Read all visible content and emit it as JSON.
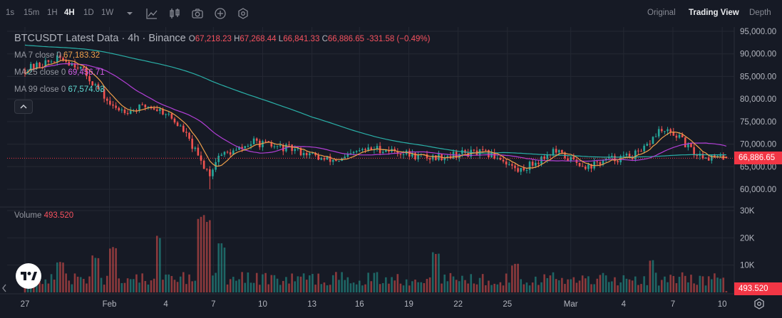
{
  "toolbar": {
    "timeframes": [
      "1s",
      "15m",
      "1H",
      "4H",
      "1D",
      "1W"
    ],
    "active_timeframe": "4H",
    "tools": [
      "chevron-down-icon",
      "indicators-icon",
      "chart-type-icon",
      "screenshot-icon",
      "add-icon",
      "settings-hex-icon"
    ],
    "views": [
      "Original",
      "Trading View",
      "Depth"
    ],
    "active_view": "Trading View"
  },
  "legend": {
    "symbol": "BTCUSDT Latest Data",
    "interval": "4h",
    "exchange": "Binance",
    "o_label": "O",
    "o": "67,218.23",
    "h_label": "H",
    "h": "67,268.44",
    "l_label": "L",
    "l": "66,841.33",
    "c_label": "C",
    "c": "66,886.65",
    "change": "-331.58 (−0.49%)",
    "ma7_label": "MA 7 close 0",
    "ma7": "67,183.32",
    "ma25_label": "MA 25 close 0",
    "ma25": "69,456.71",
    "ma99_label": "MA 99 close 0",
    "ma99": "67,574.03",
    "volume_label": "Volume",
    "volume": "493.520"
  },
  "colors": {
    "up": "#26a69a",
    "down": "#ef5350",
    "ma7": "#f0a04b",
    "ma25": "#b23fd6",
    "ma99": "#2ab0a8",
    "price_tag": "#f23645"
  },
  "price_axis": [
    "95,000.00",
    "90,000.00",
    "85,000.00",
    "80,000.00",
    "75,000.00",
    "70,000.00",
    "65,000.00",
    "60,000.00"
  ],
  "volume_axis": [
    "30K",
    "20K",
    "10K"
  ],
  "current_price": "66,886.65",
  "current_volume": "493.520",
  "time_axis": [
    "27",
    "Feb",
    "4",
    "7",
    "10",
    "13",
    "16",
    "19",
    "22",
    "25",
    "Mar",
    "4",
    "7",
    "10"
  ],
  "chart_data": {
    "type": "candlestick",
    "symbol": "BTCUSDT",
    "interval": "4h",
    "y_range": [
      55000,
      96000
    ],
    "volume_range": [
      0,
      32000
    ],
    "anchors_close": [
      {
        "d": 0,
        "p": 86500
      },
      {
        "d": 2,
        "p": 89000
      },
      {
        "d": 3,
        "p": 87500
      },
      {
        "d": 4,
        "p": 83000
      },
      {
        "d": 5,
        "p": 78000
      },
      {
        "d": 6,
        "p": 77500
      },
      {
        "d": 7,
        "p": 78500
      },
      {
        "d": 8,
        "p": 77000
      },
      {
        "d": 9,
        "p": 73000
      },
      {
        "d": 10,
        "p": 66000
      },
      {
        "d": 10.5,
        "p": 63500
      },
      {
        "d": 11,
        "p": 67500
      },
      {
        "d": 12,
        "p": 68500
      },
      {
        "d": 13,
        "p": 70500
      },
      {
        "d": 14,
        "p": 69500
      },
      {
        "d": 15,
        "p": 69000
      },
      {
        "d": 16,
        "p": 68000
      },
      {
        "d": 17,
        "p": 66500
      },
      {
        "d": 18,
        "p": 66500
      },
      {
        "d": 19,
        "p": 68500
      },
      {
        "d": 20,
        "p": 69000
      },
      {
        "d": 21,
        "p": 68500
      },
      {
        "d": 22,
        "p": 67500
      },
      {
        "d": 23,
        "p": 67000
      },
      {
        "d": 24,
        "p": 67500
      },
      {
        "d": 25,
        "p": 68000
      },
      {
        "d": 26,
        "p": 68000
      },
      {
        "d": 27,
        "p": 67000
      },
      {
        "d": 28,
        "p": 64000
      },
      {
        "d": 29,
        "p": 66000
      },
      {
        "d": 30,
        "p": 68500
      },
      {
        "d": 31,
        "p": 66500
      },
      {
        "d": 32,
        "p": 65000
      },
      {
        "d": 33,
        "p": 66500
      },
      {
        "d": 34,
        "p": 67000
      },
      {
        "d": 35,
        "p": 68000
      },
      {
        "d": 36,
        "p": 73000
      },
      {
        "d": 37,
        "p": 72000
      },
      {
        "d": 38,
        "p": 68000
      },
      {
        "d": 39,
        "p": 67000
      },
      {
        "d": 40,
        "p": 66900
      }
    ],
    "volume_spikes": [
      {
        "d": 2,
        "v": 12000
      },
      {
        "d": 4,
        "v": 14000
      },
      {
        "d": 5,
        "v": 18000
      },
      {
        "d": 7.6,
        "v": 21000
      },
      {
        "d": 10,
        "v": 29000
      },
      {
        "d": 10.4,
        "v": 29500
      },
      {
        "d": 11.2,
        "v": 19000
      },
      {
        "d": 23.3,
        "v": 16000
      },
      {
        "d": 27.8,
        "v": 11000
      },
      {
        "d": 35.6,
        "v": 13000
      }
    ],
    "ma_series": [
      "MA 7",
      "MA 25",
      "MA 99"
    ],
    "last_price": 66886.65,
    "last_volume": 493.52
  }
}
